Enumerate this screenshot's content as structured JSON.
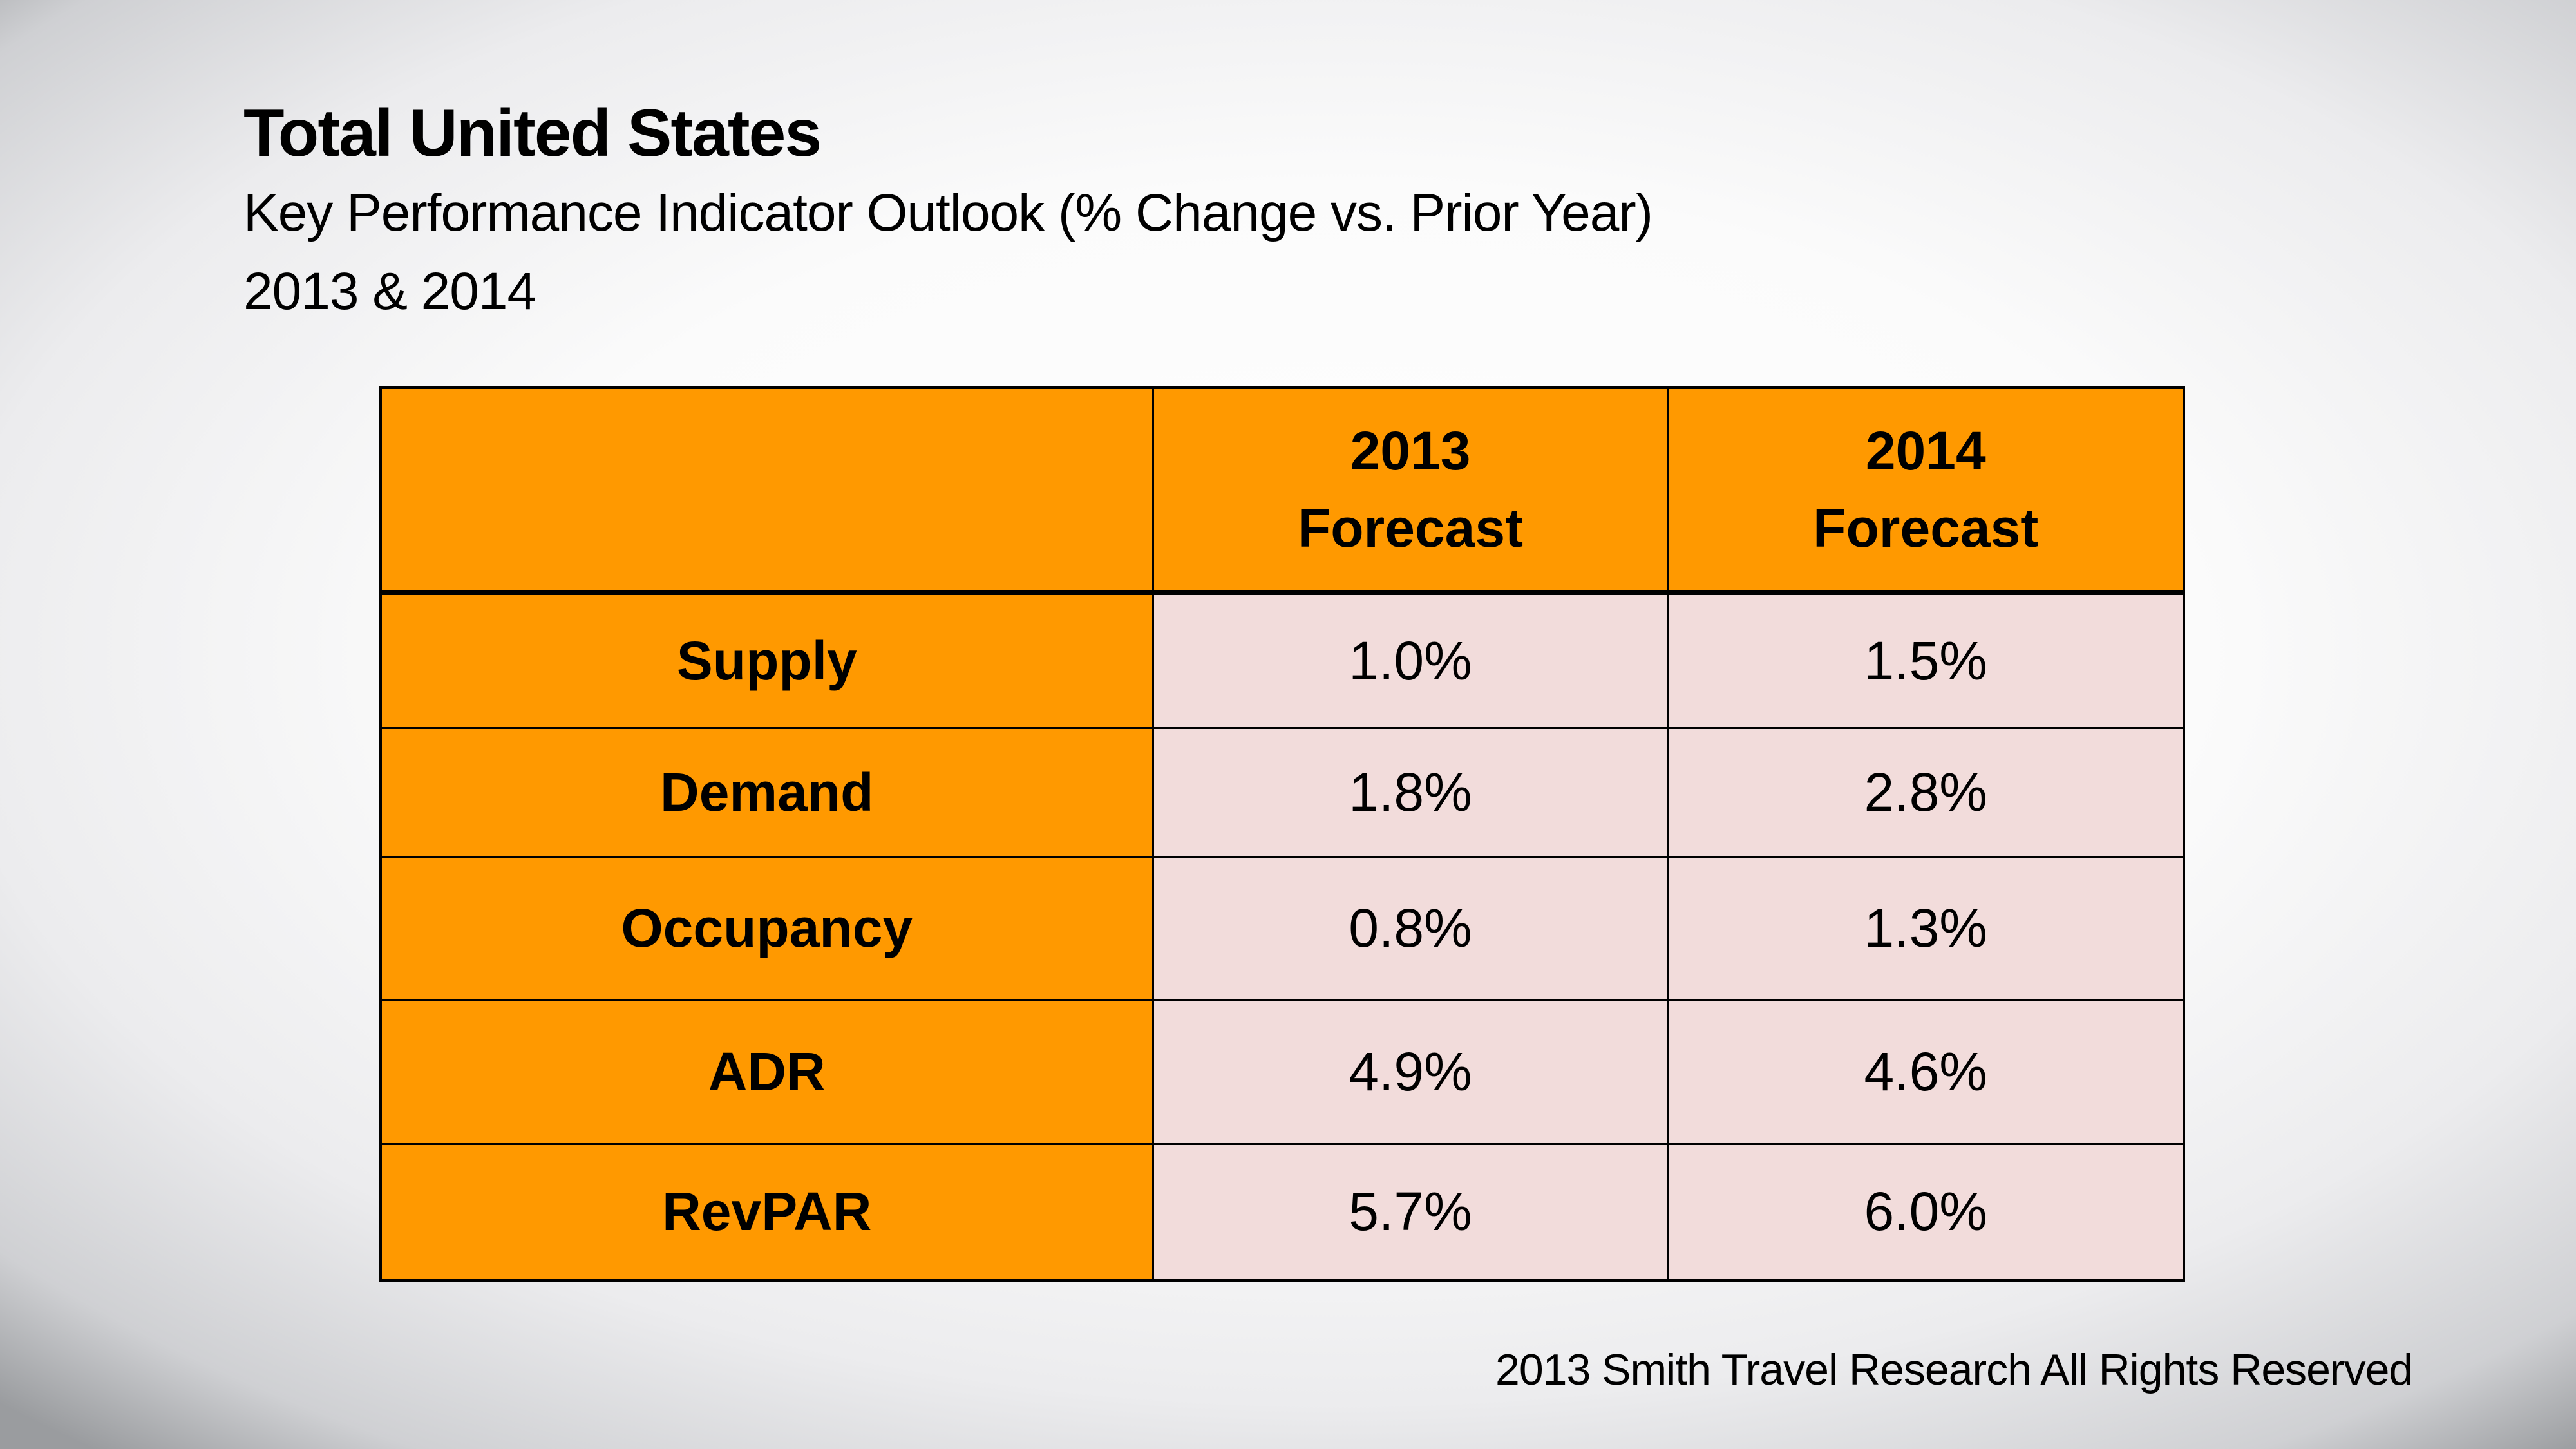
{
  "slide": {
    "title": "Total United States",
    "subtitle": "Key Performance Indicator Outlook (% Change vs. Prior Year)",
    "subtitle_years": "2013 & 2014",
    "footer": "2013 Smith Travel Research  All Rights Reserved"
  },
  "colors": {
    "header_fill": "#ff9900",
    "label_fill": "#ff9900",
    "value_fill": "#f2dcdb",
    "border": "#000000"
  },
  "table": {
    "columns": [
      {
        "line1": "",
        "line2": ""
      },
      {
        "line1": "2013",
        "line2": "Forecast"
      },
      {
        "line1": "2014",
        "line2": "Forecast"
      }
    ],
    "rows": [
      {
        "label": "Supply",
        "values": [
          "1.0%",
          "1.5%"
        ]
      },
      {
        "label": "Demand",
        "values": [
          "1.8%",
          "2.8%"
        ]
      },
      {
        "label": "Occupancy",
        "values": [
          "0.8%",
          "1.3%"
        ]
      },
      {
        "label": "ADR",
        "values": [
          "4.9%",
          "4.6%"
        ]
      },
      {
        "label": "RevPAR",
        "values": [
          "5.7%",
          "6.0%"
        ]
      }
    ]
  }
}
